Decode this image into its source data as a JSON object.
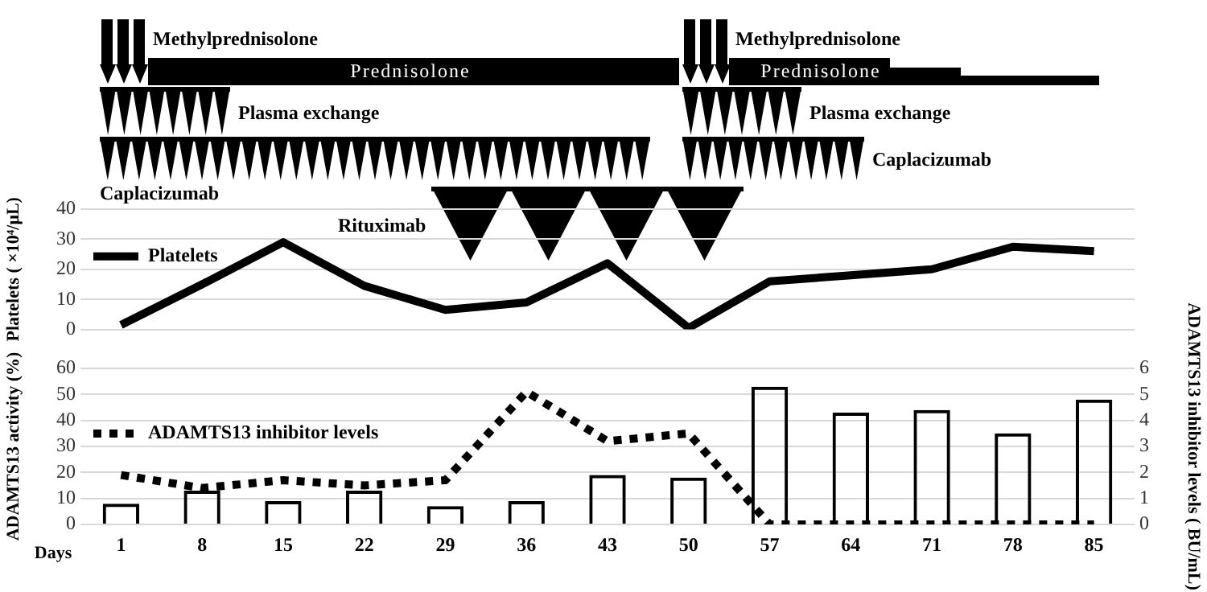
{
  "chart_data": [
    {
      "type": "line",
      "ylabel": "Platelets ( ×10⁴/μL)",
      "categories": [
        "1",
        "8",
        "15",
        "22",
        "29",
        "36",
        "43",
        "50",
        "57",
        "64",
        "71",
        "78",
        "85"
      ],
      "tick_labels": "y",
      "ylim": [
        0,
        40
      ],
      "yticks": [
        0,
        10,
        20,
        30,
        40
      ],
      "grid": "y",
      "legend": "left",
      "series": [
        {
          "name": "Platelets",
          "color": "#000000",
          "values": [
            1.5,
            15,
            29,
            14.5,
            6.5,
            9,
            22,
            0.5,
            16,
            18,
            20,
            27.5,
            26
          ]
        }
      ],
      "annotations": [
        "Methylprednisolone",
        "Prednisolone",
        "Plasma exchange",
        "Caplacizumab",
        "Rituximab",
        "Methylprednisolone",
        "Prednisolone",
        "Plasma exchange",
        "Caplacizumab"
      ]
    },
    {
      "type": "bar",
      "xlabel": "Days",
      "ylabel": "ADAMTS13 activity (%)",
      "y2label": "ADAMTS13 inhibitor levels ( BU/mL)",
      "categories": [
        "1",
        "8",
        "15",
        "22",
        "29",
        "36",
        "43",
        "50",
        "57",
        "64",
        "71",
        "78",
        "85"
      ],
      "ylim": [
        0,
        60
      ],
      "yticks": [
        0,
        10,
        20,
        30,
        40,
        50,
        60
      ],
      "y2lim": [
        0,
        6
      ],
      "y2ticks": [
        0,
        1,
        2,
        3,
        4,
        5,
        6
      ],
      "grid": "y",
      "legend": "left",
      "series": [
        {
          "color": "#000000",
          "values": [
            8,
            13,
            9,
            13,
            7,
            9,
            19,
            18,
            53,
            43,
            44,
            35,
            48
          ]
        },
        {
          "type": "line",
          "name": "ADAMTS13 inhibitor levels",
          "color": "#000000",
          "axis": "y2",
          "line_style": "dotted",
          "values": [
            1.9,
            1.4,
            1.7,
            1.5,
            1.7,
            5.1,
            3.2,
            3.5,
            0,
            0,
            0,
            0,
            0
          ]
        }
      ]
    }
  ]
}
